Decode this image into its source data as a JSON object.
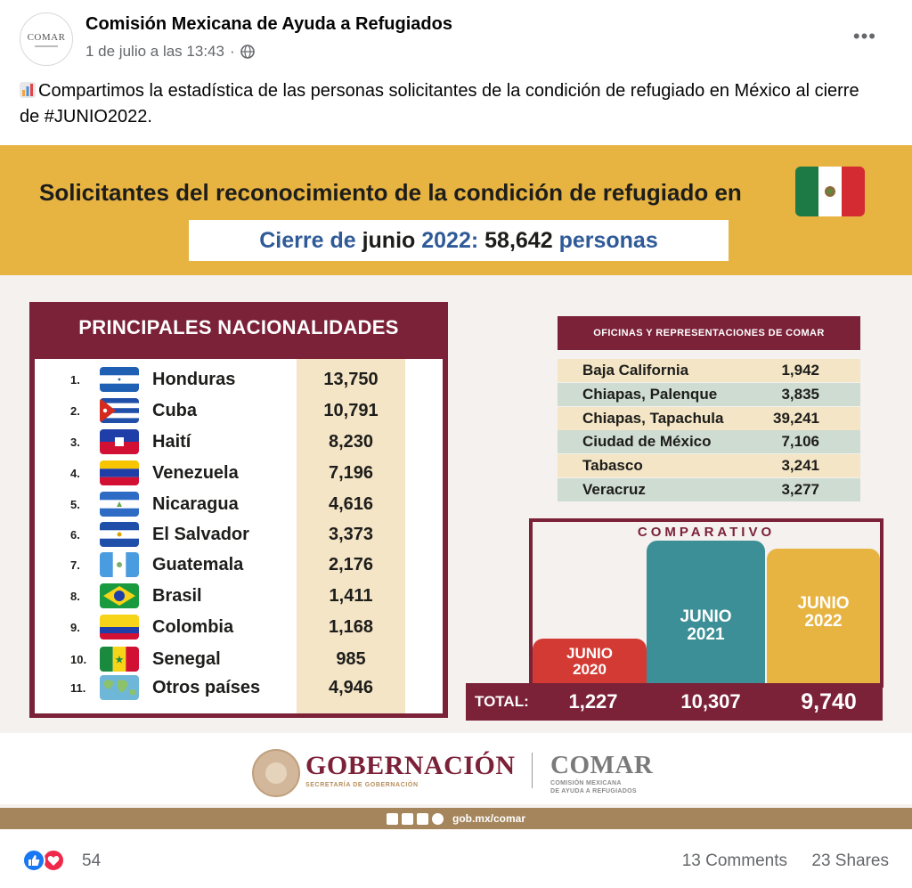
{
  "post": {
    "page_name": "Comisión Mexicana de Ayuda a Refugiados",
    "avatar_text": "COMAR",
    "timestamp": "1 de julio a las 13:43",
    "separator": "·",
    "more_label": "•••",
    "text": "Compartimos la estadística de las personas solicitantes de la condición de refugiado en México al cierre de #JUNIO2022."
  },
  "infographic": {
    "title": "Solicitantes del reconocimiento de la condición de refugiado en",
    "cierre_prefix": "Cierre de ",
    "cierre_month": "junio ",
    "cierre_year": "2022: ",
    "cierre_total": "58,642 ",
    "cierre_suffix": "personas",
    "nationalities": {
      "title": "PRINCIPALES NACIONALIDADES",
      "rows": [
        {
          "num": "1.",
          "name": "Honduras",
          "value": "13,750",
          "flag": "honduras"
        },
        {
          "num": "2.",
          "name": "Cuba",
          "value": "10,791",
          "flag": "cuba"
        },
        {
          "num": "3.",
          "name": "Haití",
          "value": "8,230",
          "flag": "haiti"
        },
        {
          "num": "4.",
          "name": "Venezuela",
          "value": "7,196",
          "flag": "venezuela"
        },
        {
          "num": "5.",
          "name": "Nicaragua",
          "value": "4,616",
          "flag": "nicaragua"
        },
        {
          "num": "6.",
          "name": "El Salvador",
          "value": "3,373",
          "flag": "el-salvador"
        },
        {
          "num": "7.",
          "name": "Guatemala",
          "value": "2,176",
          "flag": "guatemala"
        },
        {
          "num": "8.",
          "name": "Brasil",
          "value": "1,411",
          "flag": "brasil"
        },
        {
          "num": "9.",
          "name": "Colombia",
          "value": "1,168",
          "flag": "colombia"
        },
        {
          "num": "10.",
          "name": "Senegal",
          "value": "985",
          "flag": "senegal"
        },
        {
          "num": "11.",
          "name": "Otros países",
          "value": "4,946",
          "flag": "world-map"
        }
      ]
    },
    "offices": {
      "title": "OFICINAS Y REPRESENTACIONES DE COMAR",
      "rows": [
        {
          "name": "Baja California",
          "value": "1,942"
        },
        {
          "name": "Chiapas, Palenque",
          "value": "3,835"
        },
        {
          "name": "Chiapas, Tapachula",
          "value": "39,241"
        },
        {
          "name": "Ciudad de México",
          "value": "7,106"
        },
        {
          "name": "Tabasco",
          "value": "3,241"
        },
        {
          "name": "Veracruz",
          "value": "3,277"
        }
      ]
    },
    "comparativo": {
      "title": "COMPARATIVO",
      "total_label": "TOTAL:",
      "bars": [
        {
          "label_top": "JUNIO",
          "label_bottom": "2020",
          "total": "1,227",
          "color": "#d33a33"
        },
        {
          "label_top": "JUNIO",
          "label_bottom": "2021",
          "total": "10,307",
          "color": "#3c8f96"
        },
        {
          "label_top": "JUNIO",
          "label_bottom": "2022",
          "total": "9,740",
          "color": "#e7b341"
        }
      ]
    },
    "footer": {
      "gob_name": "GOBERNACIÓN",
      "gob_sub": "SECRETARÍA DE GOBERNACIÓN",
      "comar_name": "COMAR",
      "comar_sub_line1": "COMISIÓN MEXICANA",
      "comar_sub_line2": "DE AYUDA A REFUGIADOS",
      "url": "gob.mx/comar"
    },
    "colors": {
      "banner": "#e7b341",
      "wine": "#7b2138",
      "blue_text": "#2f5a98"
    }
  },
  "reactions": {
    "count": "54",
    "comments": "13 Comments",
    "shares": "23 Shares"
  }
}
